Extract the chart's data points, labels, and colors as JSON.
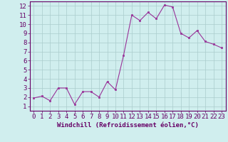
{
  "x": [
    0,
    1,
    2,
    3,
    4,
    5,
    6,
    7,
    8,
    9,
    10,
    11,
    12,
    13,
    14,
    15,
    16,
    17,
    18,
    19,
    20,
    21,
    22,
    23
  ],
  "y": [
    1.9,
    2.1,
    1.6,
    3.0,
    3.0,
    1.2,
    2.6,
    2.6,
    2.0,
    3.7,
    2.8,
    6.6,
    11.0,
    10.4,
    11.3,
    10.6,
    12.1,
    11.9,
    9.0,
    8.5,
    9.3,
    8.1,
    7.8,
    7.4
  ],
  "line_color": "#993399",
  "marker_color": "#993399",
  "bg_color": "#d0eeee",
  "grid_color": "#aacccc",
  "xlabel": "Windchill (Refroidissement éolien,°C)",
  "xlim": [
    -0.5,
    23.5
  ],
  "ylim": [
    0.5,
    12.5
  ],
  "yticks": [
    1,
    2,
    3,
    4,
    5,
    6,
    7,
    8,
    9,
    10,
    11,
    12
  ],
  "xticks": [
    0,
    1,
    2,
    3,
    4,
    5,
    6,
    7,
    8,
    9,
    10,
    11,
    12,
    13,
    14,
    15,
    16,
    17,
    18,
    19,
    20,
    21,
    22,
    23
  ],
  "xlabel_fontsize": 6.5,
  "tick_fontsize": 6.5,
  "spine_color": "#660066"
}
